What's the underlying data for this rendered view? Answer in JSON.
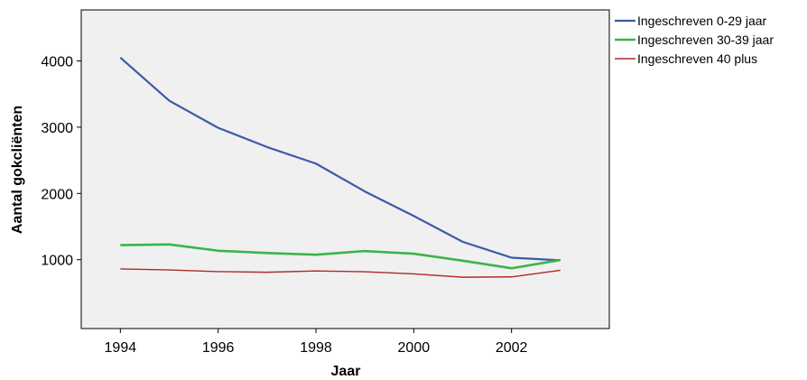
{
  "chart_data": {
    "type": "line",
    "xlabel": "Jaar",
    "ylabel": "Aantal gokcliënten",
    "x": [
      1994,
      1995,
      1996,
      1997,
      1998,
      1999,
      2000,
      2001,
      2002,
      2003
    ],
    "xticks": [
      1994,
      1996,
      1998,
      2000,
      2002
    ],
    "xtick_labels": [
      "1994",
      "1996",
      "1998",
      "2000",
      "2002"
    ],
    "yticks": [
      1000,
      2000,
      3000,
      4000
    ],
    "ytick_labels": [
      "1000",
      "2000",
      "3000",
      "4000"
    ],
    "xlim": [
      1993.2,
      2004.0
    ],
    "ylim": [
      -40,
      4770
    ],
    "grid": false,
    "legend_position": "outside-top-right",
    "plot_background": "#f0f0f0",
    "series": [
      {
        "name": "Ingeschreven 0-29 jaar",
        "color": "#3c5aa8",
        "values": [
          4050,
          3400,
          2990,
          2700,
          2450,
          2030,
          1660,
          1270,
          1030,
          990
        ]
      },
      {
        "name": "Ingeschreven 30-39 jaar",
        "color": "#3cb44a",
        "values": [
          1220,
          1230,
          1135,
          1100,
          1075,
          1130,
          1090,
          985,
          870,
          995
        ]
      },
      {
        "name": "Ingeschreven 40 plus",
        "color": "#b02a2a",
        "values": [
          860,
          845,
          820,
          810,
          830,
          818,
          785,
          735,
          740,
          840
        ]
      }
    ]
  }
}
